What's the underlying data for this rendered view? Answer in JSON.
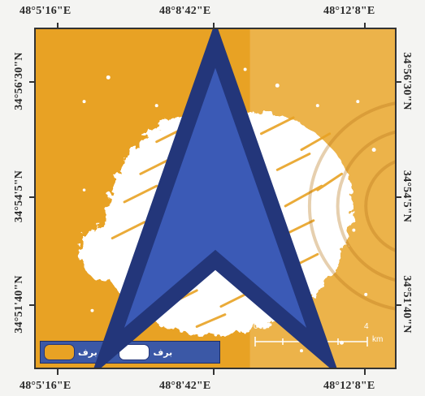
{
  "map": {
    "top_coords": [
      "48°5'16\"E",
      "48°8'42\"E",
      "48°12'8\"E"
    ],
    "bottom_coords": [
      "48°5'16\"E",
      "48°8'42\"E",
      "48°12'8\"E"
    ],
    "left_coords": [
      "34°56'30\"N",
      "34°54'5\"N",
      "34°51'40\"N"
    ],
    "right_coords": [
      "34°56'30\"N",
      "34°54'5\"N",
      "34°51'40\"N"
    ],
    "legend": {
      "snow_label": "برف",
      "no_snow_label": "غير برف",
      "snow_color": "#ffffff",
      "no_snow_color": "#e8a224"
    },
    "scalebar": {
      "start": "0",
      "end": "4",
      "unit": "km"
    },
    "north_arrow_icon": "north-arrow-icon",
    "colors": {
      "background_class": "#e8a224",
      "snow_class": "#ffffff",
      "legend_box": "#3b58a6"
    }
  }
}
